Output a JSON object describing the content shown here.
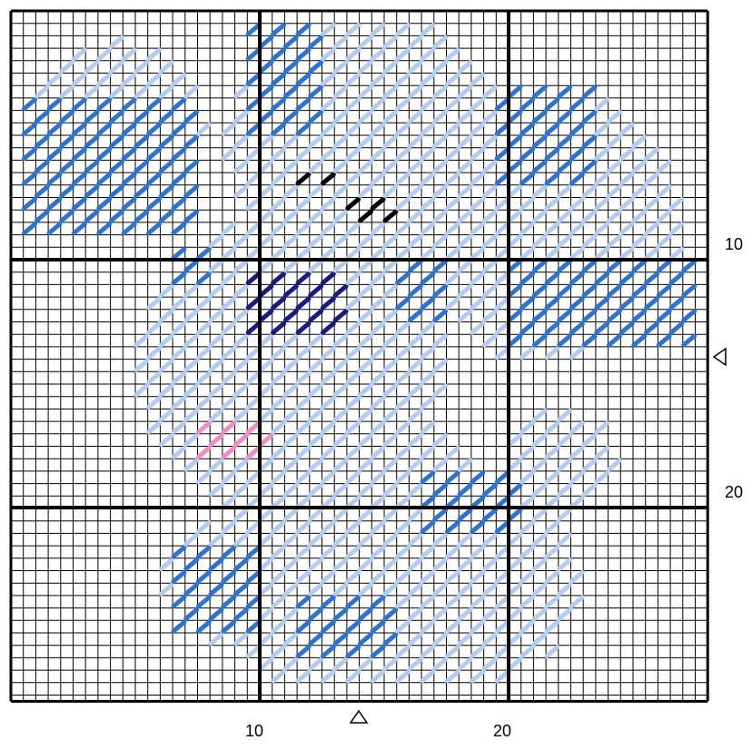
{
  "axis": {
    "x_labels": [
      "10",
      "20"
    ],
    "y_labels": [
      "10",
      "20"
    ]
  }
}
